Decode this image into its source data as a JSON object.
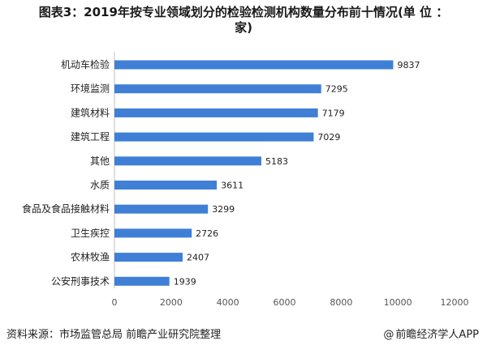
{
  "title": {
    "line1": "图表3：2019年按专业领域划分的检验检测机构数量分布前十情况(单 位 ：",
    "line2": "家)"
  },
  "chart_data": {
    "type": "bar",
    "orientation": "horizontal",
    "categories": [
      "机动车检验",
      "环境监测",
      "建筑材料",
      "建筑工程",
      "其他",
      "水质",
      "食品及食品接触材料",
      "卫生疾控",
      "农林牧渔",
      "公安刑事技术"
    ],
    "values": [
      9837,
      7295,
      7179,
      7029,
      5183,
      3611,
      3299,
      2726,
      2407,
      1939
    ],
    "value_labels": [
      "9837",
      "7295",
      "7179",
      "7029",
      "5183",
      "3611",
      "3299",
      "2726",
      "2407",
      "1939"
    ],
    "xlim": [
      0,
      12000
    ],
    "xticks": [
      0,
      2000,
      4000,
      6000,
      8000,
      10000,
      12000
    ],
    "xtick_labels": [
      "0",
      "2000",
      "4000",
      "6000",
      "8000",
      "10000",
      "12000"
    ],
    "grid": false,
    "bar_color": "#3f7fd6",
    "xlabel": "",
    "ylabel": ""
  },
  "footer": {
    "source": "资料来源：市场监管总局 前瞻产业研究院整理",
    "brand_symbol": "@",
    "brand": "前瞻经济学人APP"
  }
}
